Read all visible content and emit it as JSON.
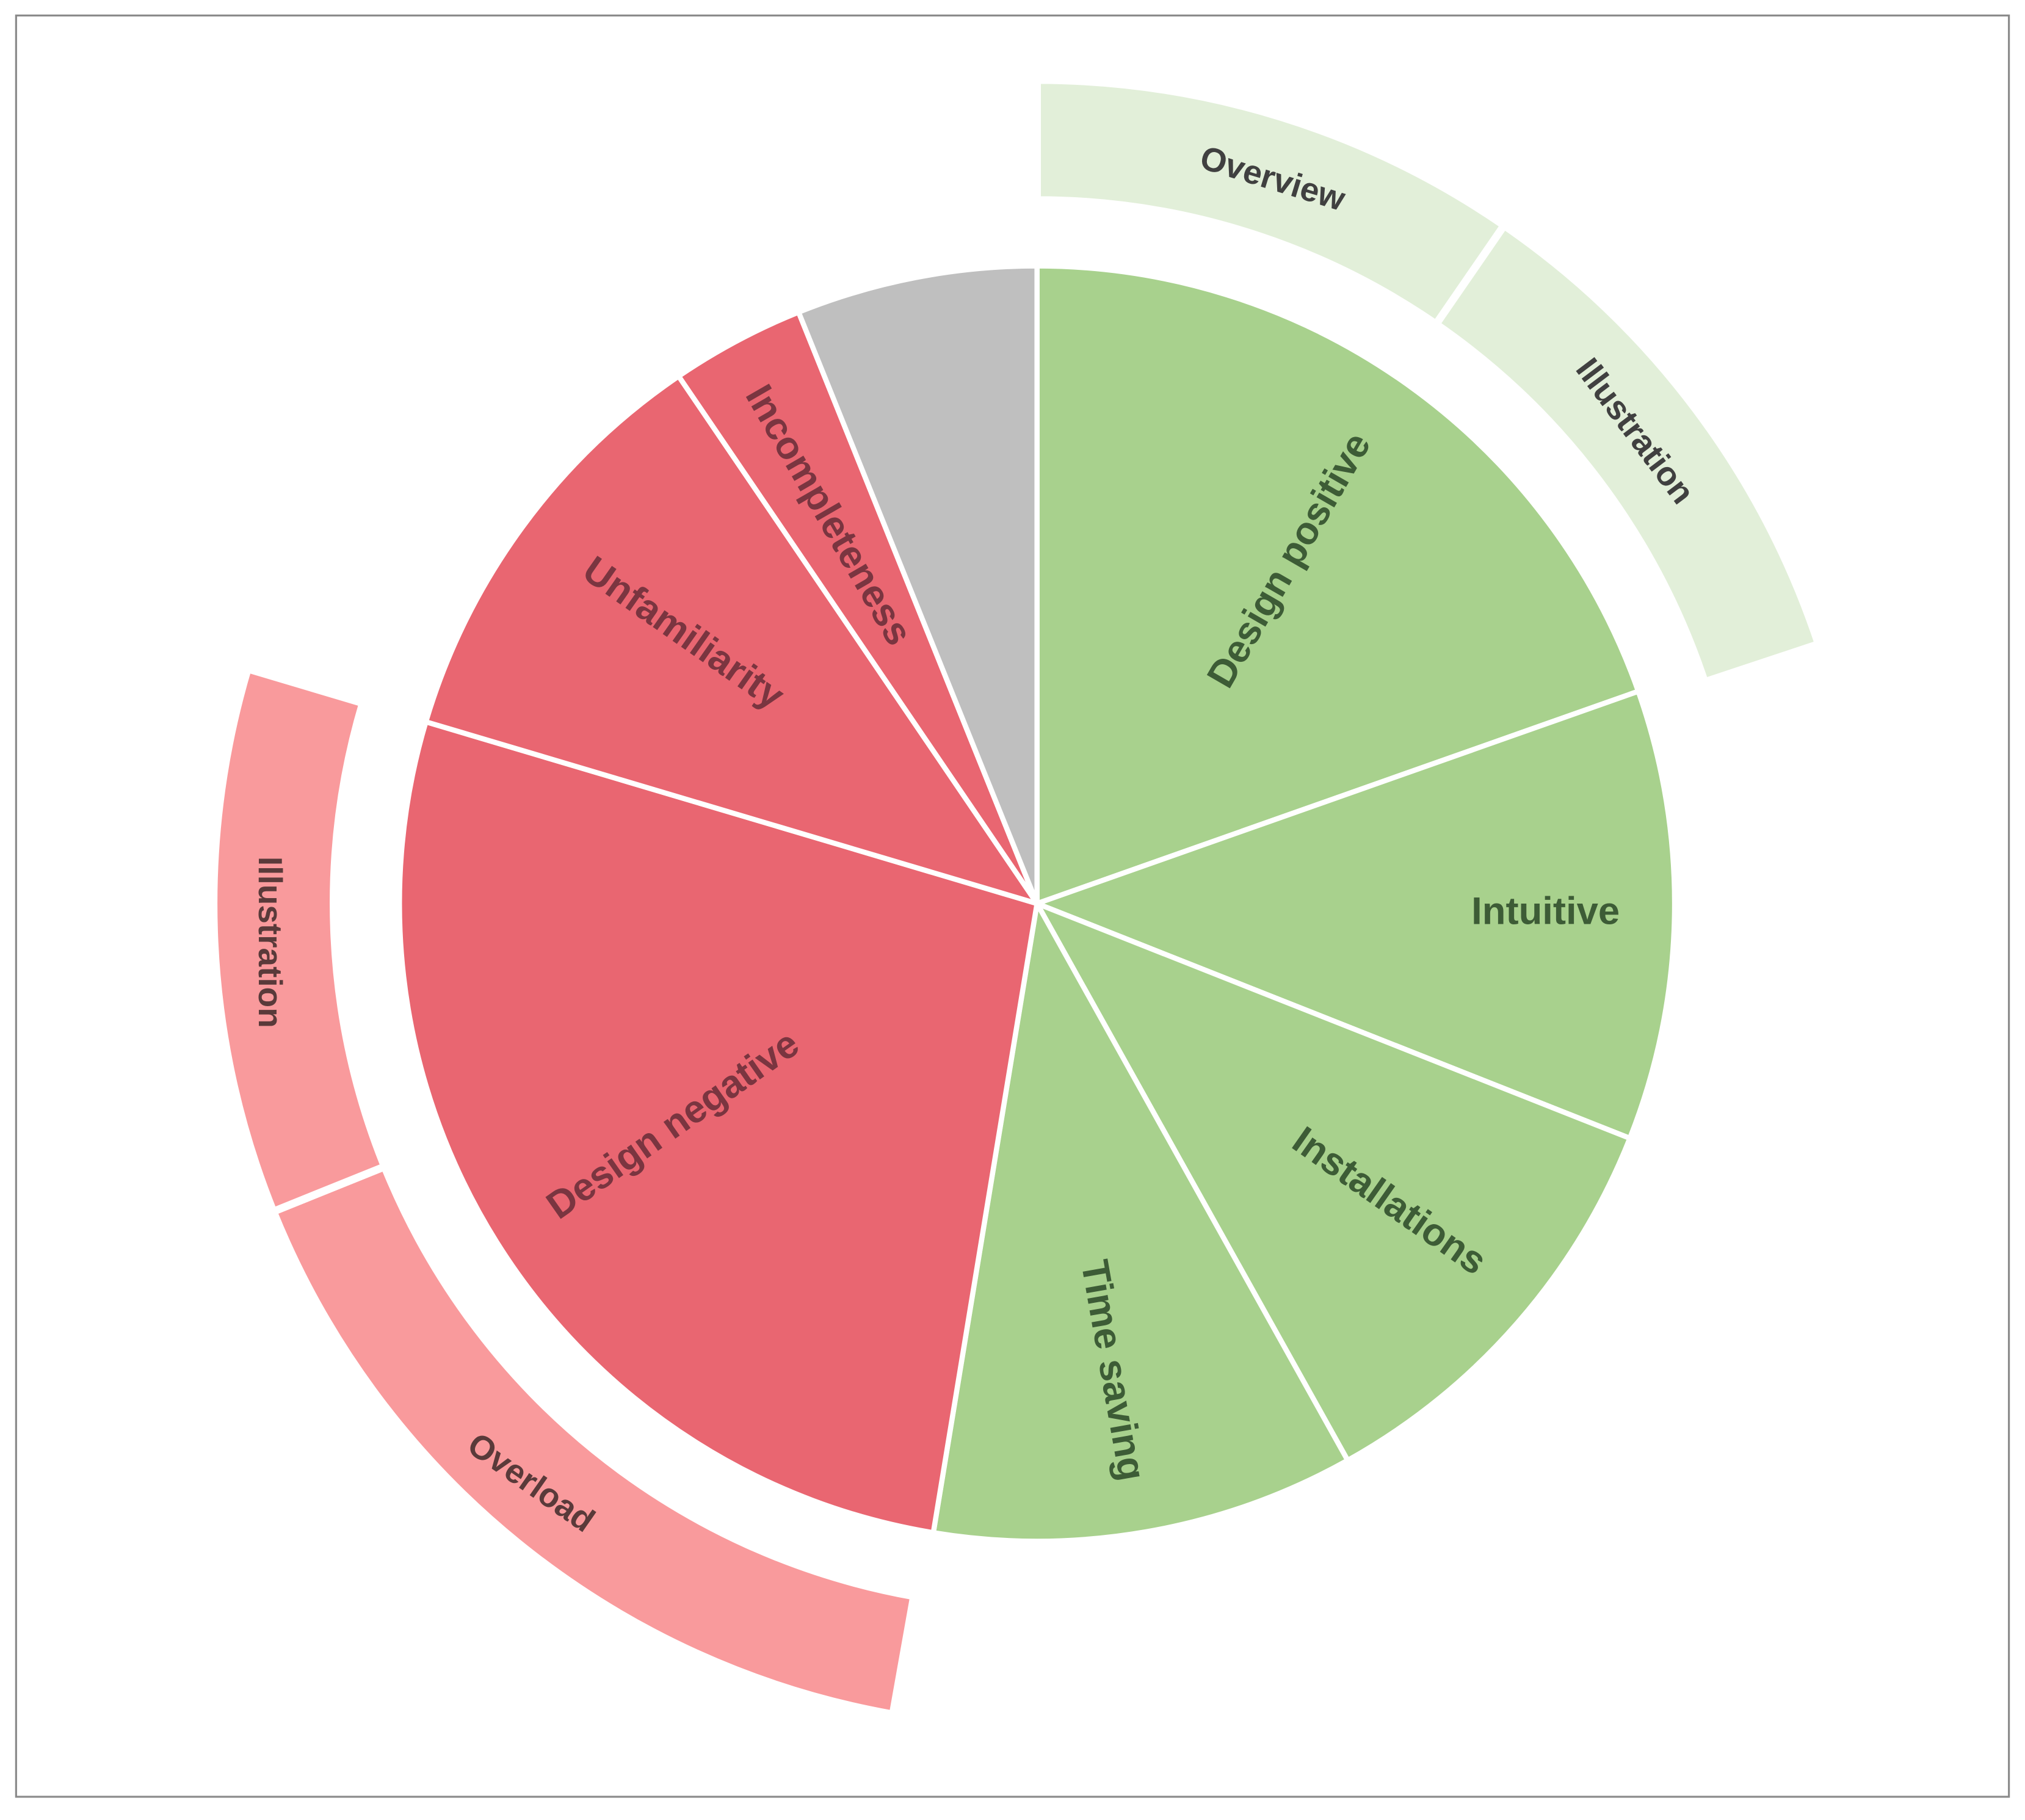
{
  "chart_data": {
    "type": "sunburst",
    "unit": "percent of total (estimated from slice angles)",
    "inner_ring": [
      {
        "label": "Design positive",
        "value": 19.6,
        "color": "#a8d18d",
        "text_color": "#3d5c36"
      },
      {
        "label": "Intuitive",
        "value": 11.4,
        "color": "#a8d18d",
        "text_color": "#3d5c36"
      },
      {
        "label": "Installations",
        "value": 10.9,
        "color": "#a8d18d",
        "text_color": "#3d5c36"
      },
      {
        "label": "Time saving",
        "value": 10.7,
        "color": "#a8d18d",
        "text_color": "#3d5c36"
      },
      {
        "label": "Design negative",
        "value": 27.0,
        "color": "#e96671",
        "text_color": "#7a3540"
      },
      {
        "label": "Unfamiliarity",
        "value": 10.9,
        "color": "#e96671",
        "text_color": "#7a3540"
      },
      {
        "label": "Incompleteness",
        "value": 3.4,
        "color": "#e96671",
        "text_color": "#7a3540"
      },
      {
        "label": "",
        "value": 6.1,
        "color": "#bfbfbf",
        "text_color": "#595959"
      }
    ],
    "outer_ring": [
      {
        "label": "Overview",
        "parent": "Design positive",
        "start": 0,
        "value": 9.6,
        "color": "#e2efd9",
        "text_color": "#404040"
      },
      {
        "label": "Illustration",
        "parent": "Design positive",
        "start": 9.6,
        "value": 10.3,
        "color": "#e2efd9",
        "text_color": "#404040"
      },
      {
        "label": "Overload",
        "parent": "Design negative",
        "start": 52.8,
        "value": 16.1,
        "color": "#f99a9c",
        "text_color": "#5a3a3a"
      },
      {
        "label": "Illustration",
        "parent": "Design negative",
        "start": 68.9,
        "value": 10.7,
        "color": "#f99a9c",
        "text_color": "#5a3a3a"
      }
    ]
  }
}
